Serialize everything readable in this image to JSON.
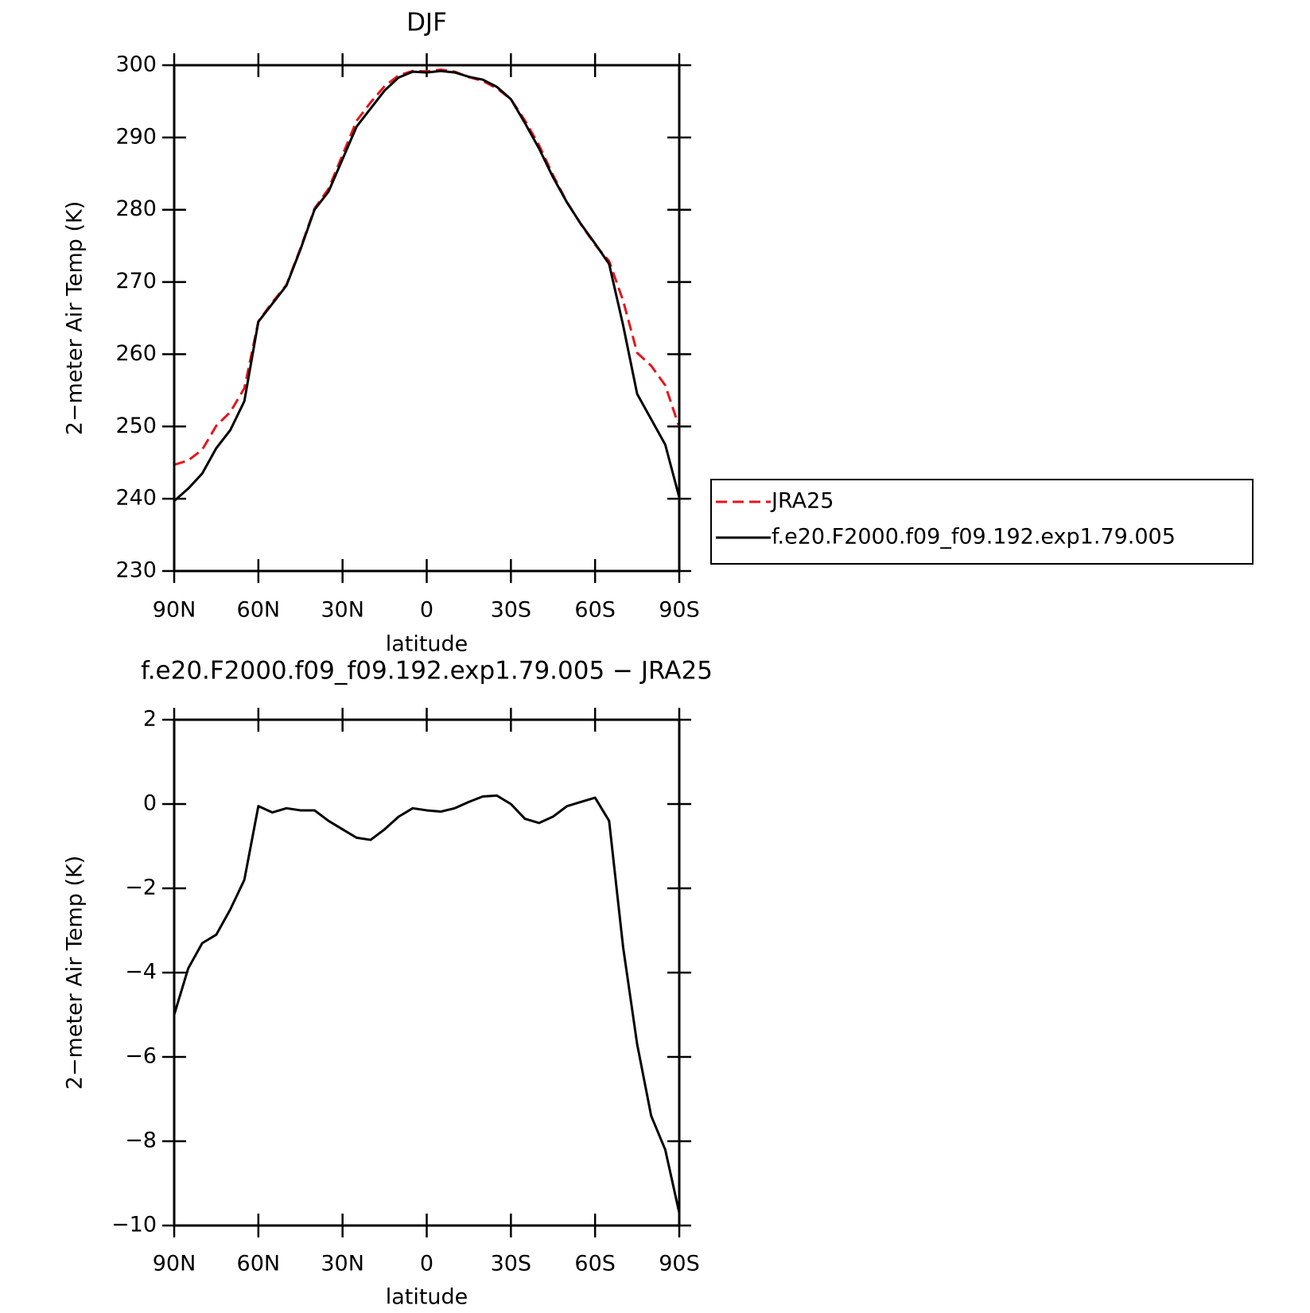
{
  "chart_data": [
    {
      "type": "line",
      "title": "DJF",
      "xlabel": "latitude",
      "ylabel": "2−meter Air Temp (K)",
      "x": [
        90,
        85,
        80,
        75,
        70,
        65,
        60,
        55,
        50,
        45,
        40,
        35,
        30,
        25,
        20,
        15,
        10,
        5,
        0,
        -5,
        -10,
        -15,
        -20,
        -25,
        -30,
        -35,
        -40,
        -45,
        -50,
        -55,
        -60,
        -65,
        -70,
        -75,
        -80,
        -85,
        -90
      ],
      "xlim": [
        90,
        -90
      ],
      "xticks": [
        {
          "value": 90,
          "label": "90N"
        },
        {
          "value": 60,
          "label": "60N"
        },
        {
          "value": 30,
          "label": "30N"
        },
        0,
        {
          "value": -30,
          "label": "30S"
        },
        {
          "value": -60,
          "label": "60S"
        },
        {
          "value": -90,
          "label": "90S"
        }
      ],
      "ylim": [
        230,
        300
      ],
      "yticks": [
        230,
        240,
        250,
        260,
        270,
        280,
        290,
        300
      ],
      "legend": "outside-right",
      "series": [
        {
          "name": "JRA25",
          "color": "#e8141b",
          "style": "dashed",
          "values": [
            244.7,
            245.3,
            246.8,
            250.1,
            252,
            255.3,
            264.55,
            267.2,
            269.6,
            274.65,
            280.15,
            282.9,
            287.6,
            292.3,
            294.85,
            297.1,
            298.6,
            299.2,
            299.15,
            299.38,
            299.1,
            298.35,
            297.82,
            296.8,
            295.3,
            292.35,
            288.95,
            284.8,
            281.05,
            277.95,
            275.15,
            272.9,
            267.4,
            260.2,
            258.4,
            255.7,
            249.9
          ]
        },
        {
          "name": "f.e20.F2000.f09_f09.192.exp1.79.005",
          "color": "#000000",
          "style": "solid",
          "values": [
            239.7,
            241.4,
            243.5,
            247,
            249.5,
            253.5,
            264.5,
            267,
            269.5,
            274.5,
            280,
            282.5,
            287,
            291.5,
            294,
            296.5,
            298.3,
            299.1,
            299,
            299.2,
            299,
            298.4,
            298,
            297,
            295.3,
            292,
            288.5,
            284.5,
            281,
            278,
            275.3,
            272.5,
            264,
            254.5,
            251,
            247.5,
            240.2
          ]
        }
      ]
    },
    {
      "type": "line",
      "title": "f.e20.F2000.f09_f09.192.exp1.79.005 − JRA25",
      "xlabel": "latitude",
      "ylabel": "2−meter Air Temp (K)",
      "x": [
        90,
        85,
        80,
        75,
        70,
        65,
        60,
        55,
        50,
        45,
        40,
        35,
        30,
        25,
        20,
        15,
        10,
        5,
        0,
        -5,
        -10,
        -15,
        -20,
        -25,
        -30,
        -35,
        -40,
        -45,
        -50,
        -55,
        -60,
        -65,
        -70,
        -75,
        -80,
        -85,
        -90
      ],
      "xlim": [
        90,
        -90
      ],
      "xticks": [
        {
          "value": 90,
          "label": "90N"
        },
        {
          "value": 60,
          "label": "60N"
        },
        {
          "value": 30,
          "label": "30N"
        },
        0,
        {
          "value": -30,
          "label": "30S"
        },
        {
          "value": -60,
          "label": "60S"
        },
        {
          "value": -90,
          "label": "90S"
        }
      ],
      "ylim": [
        -10,
        2
      ],
      "yticks": [
        {
          "value": -10,
          "label": "−10"
        },
        {
          "value": -8,
          "label": "−8"
        },
        {
          "value": -6,
          "label": "−6"
        },
        {
          "value": -4,
          "label": "−4"
        },
        {
          "value": -2,
          "label": "−2"
        },
        0,
        2
      ],
      "series": [
        {
          "color": "#000000",
          "style": "solid",
          "values": [
            -5.0,
            -3.9,
            -3.3,
            -3.1,
            -2.5,
            -1.8,
            -0.05,
            -0.2,
            -0.1,
            -0.15,
            -0.15,
            -0.4,
            -0.6,
            -0.8,
            -0.85,
            -0.6,
            -0.3,
            -0.1,
            -0.15,
            -0.18,
            -0.1,
            0.05,
            0.18,
            0.2,
            0.0,
            -0.35,
            -0.45,
            -0.3,
            -0.05,
            0.05,
            0.15,
            -0.4,
            -3.4,
            -5.7,
            -7.4,
            -8.2,
            -9.7
          ]
        }
      ]
    }
  ]
}
